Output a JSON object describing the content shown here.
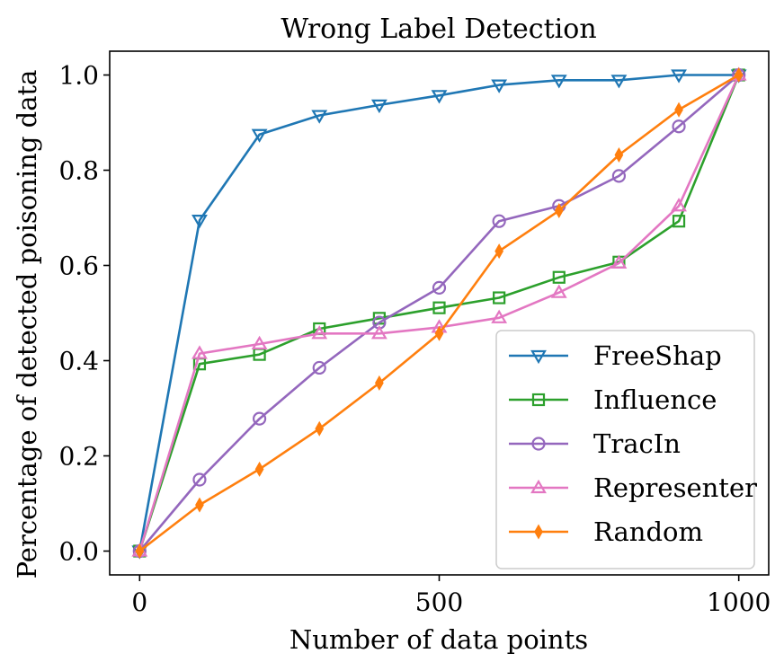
{
  "chart_data": {
    "type": "line",
    "title": "Wrong Label Detection",
    "xlabel": "Number of data points",
    "ylabel": "Percentage of detected poisoning data",
    "xlim": [
      -50,
      1050
    ],
    "ylim": [
      -0.05,
      1.05
    ],
    "x_ticks": [
      0,
      500,
      1000
    ],
    "x_tick_labels": [
      "0",
      "500",
      "1000"
    ],
    "y_ticks": [
      0.0,
      0.2,
      0.4,
      0.6,
      0.8,
      1.0
    ],
    "y_tick_labels": [
      "0.0",
      "0.2",
      "0.4",
      "0.6",
      "0.8",
      "1.0"
    ],
    "grid": false,
    "legend_position": "lower right",
    "x": [
      0,
      100,
      200,
      300,
      400,
      500,
      600,
      700,
      800,
      900,
      1000
    ],
    "series": [
      {
        "name": "FreeShap",
        "color": "#1f77b4",
        "marker": "triangle_down",
        "values": [
          0.0,
          0.695,
          0.875,
          0.915,
          0.937,
          0.957,
          0.979,
          0.989,
          0.989,
          1.0,
          1.0
        ]
      },
      {
        "name": "Influence",
        "color": "#2ca02c",
        "marker": "square",
        "values": [
          0.0,
          0.393,
          0.413,
          0.467,
          0.489,
          0.511,
          0.532,
          0.575,
          0.607,
          0.693,
          1.0
        ]
      },
      {
        "name": "TracIn",
        "color": "#9467bd",
        "marker": "circle",
        "values": [
          0.0,
          0.15,
          0.278,
          0.385,
          0.48,
          0.553,
          0.693,
          0.725,
          0.788,
          0.892,
          1.0
        ]
      },
      {
        "name": "Representer",
        "color": "#e377c2",
        "marker": "triangle_up",
        "values": [
          0.0,
          0.415,
          0.435,
          0.457,
          0.457,
          0.47,
          0.49,
          0.543,
          0.605,
          0.725,
          1.0
        ]
      },
      {
        "name": "Random",
        "color": "#ff7f0e",
        "marker": "thin_diamond",
        "values": [
          0.0,
          0.097,
          0.172,
          0.257,
          0.353,
          0.457,
          0.63,
          0.715,
          0.832,
          0.927,
          1.0
        ]
      }
    ]
  }
}
